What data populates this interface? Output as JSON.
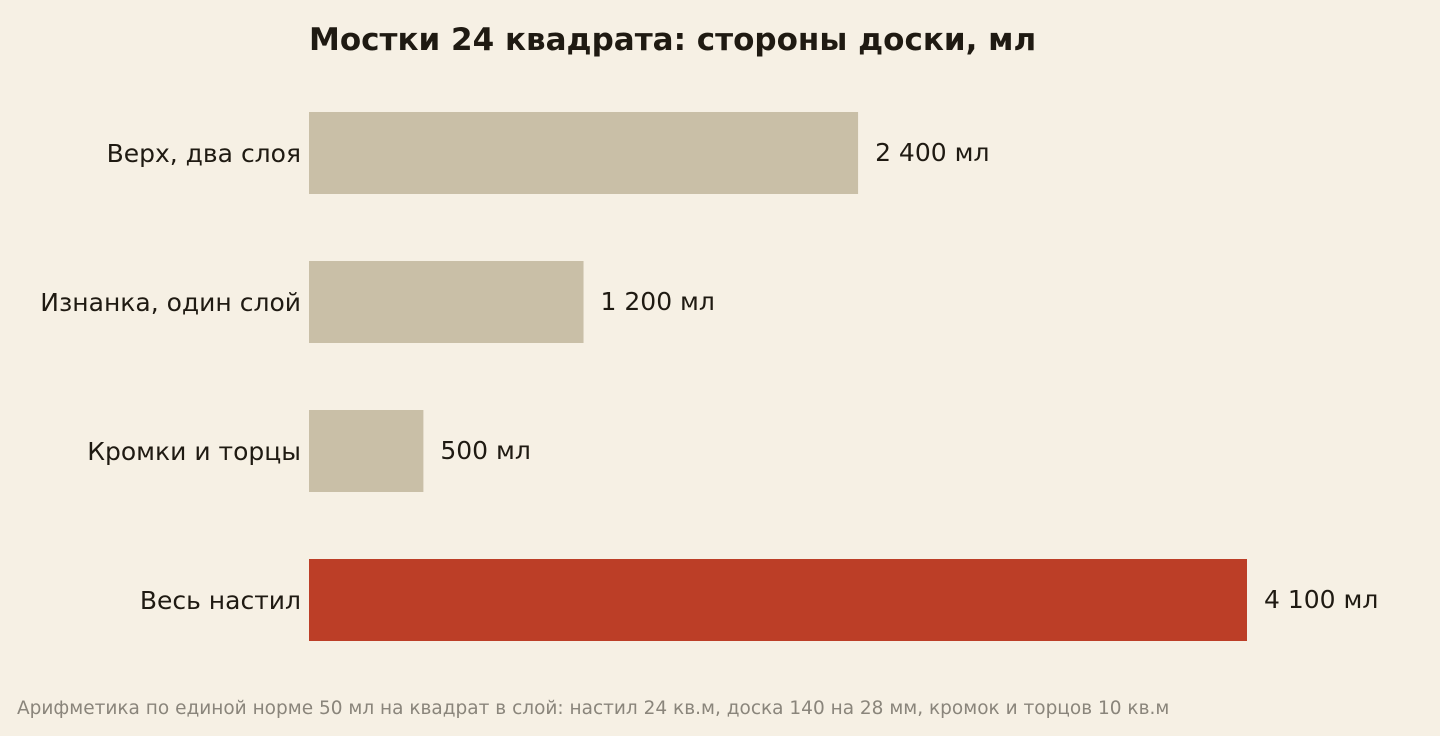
{
  "chart_data": {
    "type": "bar",
    "orientation": "horizontal",
    "title": "Мостки 24 квадрата: стороны доски, мл",
    "categories": [
      "Верх, два слоя",
      "Изнанка, один слой",
      "Кромки и торцы",
      "Весь настил"
    ],
    "values": [
      2400,
      1200,
      500,
      4100
    ],
    "value_labels": [
      "2 400 мл",
      "1 200 мл",
      "500 мл",
      "4 100 мл"
    ],
    "bar_colors": [
      "#c9bfa7",
      "#c9bfa7",
      "#c9bfa7",
      "#bc3e27"
    ],
    "xlim": [
      0,
      4100
    ],
    "grid": false,
    "xlabel": "",
    "ylabel": "",
    "footnote": "Арифметика по единой норме 50 мл на квадрат в слой: настил 24 кв.м, доска 140 на 28 мм, кромок и торцов 10 кв.м"
  }
}
